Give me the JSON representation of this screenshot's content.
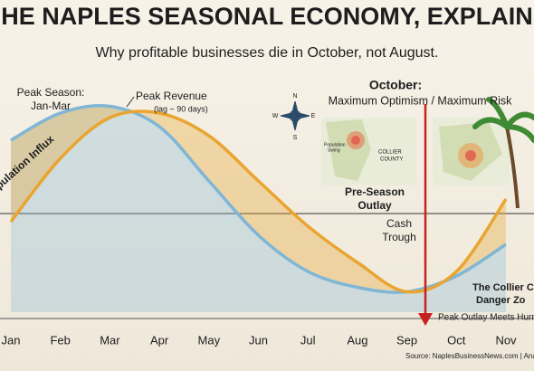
{
  "chart_data": {
    "type": "line",
    "title": "HE NAPLES SEASONAL ECONOMY, EXPLAIN",
    "subtitle": "Why profitable businesses die in October, not August.",
    "categories": [
      "Jan",
      "Feb",
      "Mar",
      "Apr",
      "May",
      "Jun",
      "Jul",
      "Aug",
      "Sep",
      "Oct",
      "Nov"
    ],
    "ylim": [
      0,
      100
    ],
    "series": [
      {
        "name": "Population Influx",
        "color": "#7fb6d6",
        "values": [
          76,
          88,
          91,
          82,
          58,
          34,
          18,
          11,
          9,
          16,
          30
        ]
      },
      {
        "name": "Peak Revenue",
        "color": "#e9a531",
        "values": [
          40,
          68,
          86,
          88,
          78,
          58,
          38,
          22,
          9,
          18,
          50
        ]
      }
    ],
    "annotations": {
      "peak_season": [
        "Peak Season:",
        "Jan-Mar"
      ],
      "lag": "(lag ~ 90 days)",
      "october": "October:",
      "risk": "Maximum Optimism / Maximum Risk",
      "outlay": [
        "Pre-Season",
        "Outlay"
      ],
      "trough": [
        "Cash",
        "Trough"
      ],
      "danger": [
        "The Collier C",
        "Danger Zo"
      ],
      "hurricane": "Peak Outlay Meets Hurric",
      "source": "Source: NaplesBusinessNews.com | Analys",
      "map_swing": [
        "Population",
        "Swing"
      ],
      "map_county": [
        "COLLIER",
        "COUNTY"
      ],
      "compass": [
        "N",
        "W",
        "E",
        "S"
      ]
    }
  }
}
